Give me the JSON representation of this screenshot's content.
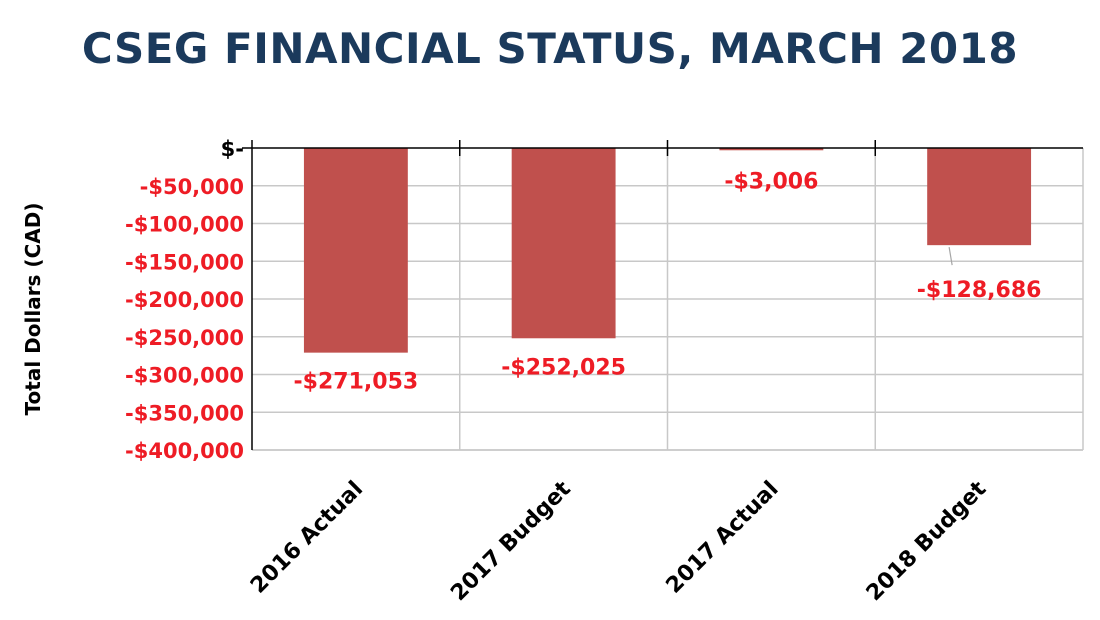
{
  "title": "CSEG FINANCIAL STATUS, MARCH 2018",
  "colors": {
    "title": "#1b3a5c",
    "bar": "#c0504d",
    "negative_label": "#ee1c25",
    "zero_label": "#000000",
    "grid": "#c8c8c8",
    "axis": "#000000"
  },
  "chart_data": {
    "type": "bar",
    "title": "CSEG FINANCIAL STATUS, MARCH 2018",
    "xlabel": "",
    "ylabel": "Total Dollars (CAD)",
    "categories": [
      "2016 Actual",
      "2017 Budget",
      "2017 Actual",
      "2018 Budget"
    ],
    "values": [
      -271053,
      -252025,
      -3006,
      -128686
    ],
    "data_labels": [
      "-$271,053",
      "-$252,025",
      "-$3,006",
      "-$128,686"
    ],
    "ylim": [
      -400000,
      0
    ],
    "yticks": [
      0,
      -50000,
      -100000,
      -150000,
      -200000,
      -250000,
      -300000,
      -350000,
      -400000
    ],
    "ytick_labels": [
      "$-",
      "-$50,000",
      "-$100,000",
      "-$150,000",
      "-$200,000",
      "-$250,000",
      "-$300,000",
      "-$350,000",
      "-$400,000"
    ],
    "grid": true,
    "legend": "none"
  }
}
